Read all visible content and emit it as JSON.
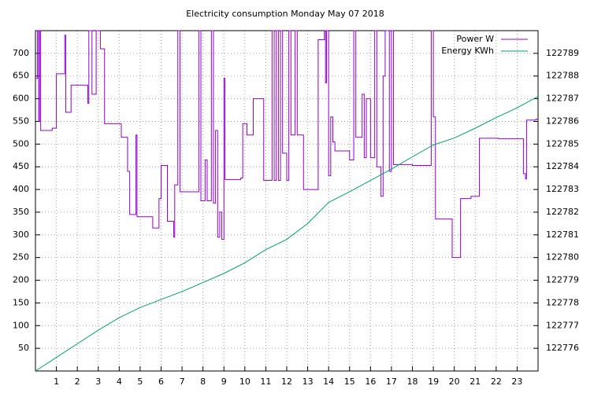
{
  "chart_data": {
    "type": "line",
    "title": "Electricity consumption Monday May 07 2018",
    "xlim": [
      0,
      24
    ],
    "xticks": [
      1,
      2,
      3,
      4,
      5,
      6,
      7,
      8,
      9,
      10,
      11,
      12,
      13,
      14,
      15,
      16,
      17,
      18,
      19,
      20,
      21,
      22,
      23
    ],
    "ylim": [
      0,
      750
    ],
    "yticks": [
      50,
      100,
      150,
      200,
      250,
      300,
      350,
      400,
      450,
      500,
      550,
      600,
      650,
      700
    ],
    "y2lim": [
      122775,
      122790
    ],
    "y2ticks": [
      122776,
      122777,
      122778,
      122779,
      122780,
      122781,
      122782,
      122783,
      122784,
      122785,
      122786,
      122787,
      122788,
      122789
    ],
    "grid": true,
    "legend": "top-right",
    "series": [
      {
        "name": "Power W",
        "color": "#9400d3",
        "steps": true,
        "x": [
          0.0,
          0.1,
          0.15,
          0.2,
          0.25,
          0.8,
          1.0,
          1.4,
          1.45,
          1.7,
          2.5,
          2.55,
          2.7,
          2.9,
          3.1,
          3.3,
          4.1,
          4.4,
          4.5,
          4.8,
          4.85,
          5.6,
          5.9,
          6.0,
          6.3,
          6.6,
          6.65,
          6.8,
          6.9,
          7.8,
          7.9,
          8.1,
          8.2,
          8.4,
          8.5,
          8.6,
          8.7,
          8.8,
          8.9,
          9.0,
          9.05,
          9.8,
          9.9,
          10.1,
          10.4,
          10.9,
          11.3,
          11.4,
          11.5,
          11.6,
          11.7,
          11.8,
          12.0,
          12.1,
          12.2,
          12.4,
          12.5,
          12.8,
          13.3,
          13.5,
          13.8,
          13.85,
          13.9,
          14.0,
          14.1,
          14.2,
          14.3,
          15.0,
          15.2,
          15.3,
          15.6,
          15.7,
          15.8,
          16.0,
          16.2,
          16.3,
          16.5,
          16.6,
          16.7,
          16.9,
          17.0,
          17.1,
          17.3,
          18.0,
          18.6,
          18.9,
          19.0,
          19.1,
          19.9,
          20.3,
          20.8,
          21.2,
          22.1,
          23.3,
          23.4,
          23.45,
          23.9,
          24
        ],
        "values": [
          645,
          750,
          550,
          750,
          530,
          535,
          655,
          740,
          570,
          630,
          590,
          750,
          610,
          750,
          710,
          545,
          515,
          440,
          345,
          520,
          340,
          315,
          380,
          453,
          330,
          295,
          410,
          750,
          395,
          750,
          375,
          465,
          375,
          750,
          370,
          530,
          295,
          350,
          290,
          645,
          422,
          425,
          545,
          520,
          600,
          420,
          750,
          420,
          750,
          420,
          750,
          480,
          420,
          750,
          520,
          750,
          520,
          400,
          400,
          730,
          750,
          635,
          750,
          430,
          560,
          505,
          485,
          465,
          750,
          515,
          610,
          470,
          600,
          470,
          750,
          450,
          385,
          650,
          750,
          440,
          750,
          455,
          455,
          453,
          453,
          750,
          560,
          335,
          250,
          380,
          385,
          513,
          512,
          435,
          423,
          553,
          555,
          555
        ]
      },
      {
        "name": "Energy KWh",
        "color": "#009e73",
        "axis": "y2",
        "x": [
          0,
          1,
          2,
          3,
          4,
          5,
          6,
          7,
          8,
          9,
          10,
          11,
          12,
          13,
          14,
          15,
          16,
          17,
          18,
          19,
          20,
          21,
          22,
          23,
          24
        ],
        "values": [
          122775.0,
          122775.6,
          122776.2,
          122776.8,
          122777.35,
          122777.8,
          122778.15,
          122778.5,
          122778.9,
          122779.3,
          122779.77,
          122780.35,
          122780.8,
          122781.5,
          122782.43,
          122782.9,
          122783.4,
          122783.9,
          122784.44,
          122784.96,
          122785.27,
          122785.7,
          122786.17,
          122786.6,
          122787.1
        ]
      }
    ]
  }
}
